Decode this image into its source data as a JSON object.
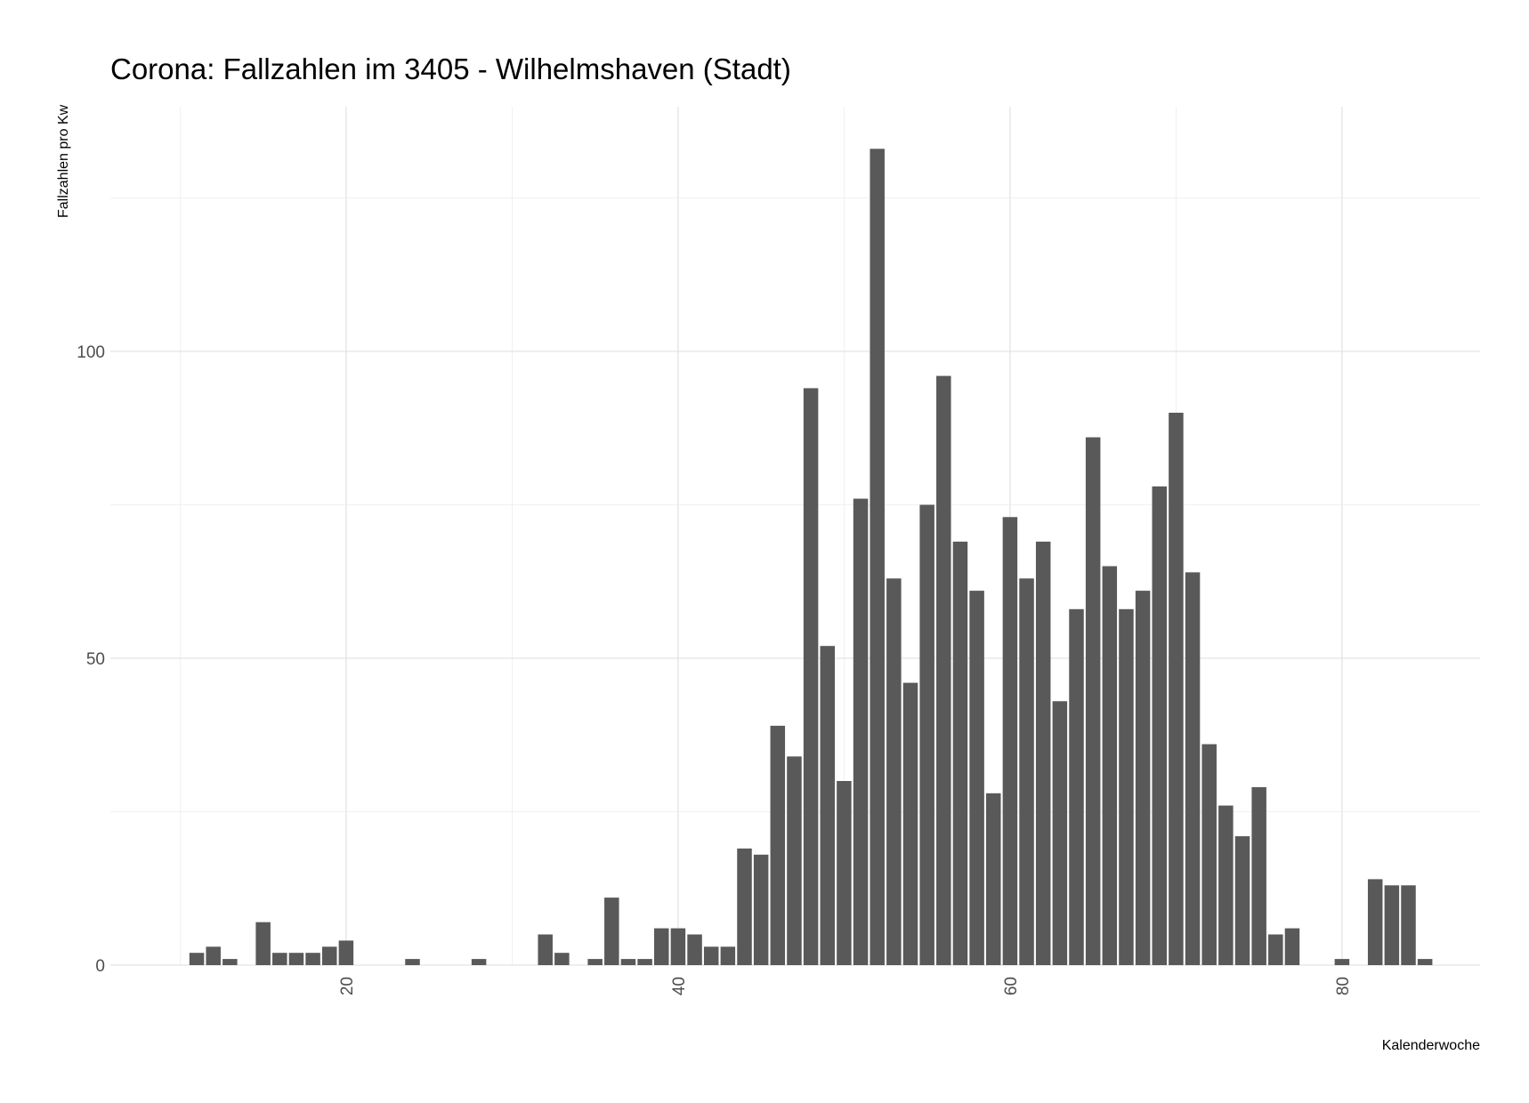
{
  "chart_data": {
    "type": "bar",
    "title": "Corona: Fallzahlen im 3405 - Wilhelmshaven (Stadt)",
    "xlabel": "Kalenderwoche",
    "ylabel": "Fallzahlen pro Kw",
    "x_ticks": [
      20,
      40,
      60,
      80
    ],
    "y_ticks": [
      0,
      50,
      100
    ],
    "xlim": [
      6,
      88
    ],
    "ylim": [
      0,
      135
    ],
    "grid": true,
    "bar_color": "#595959",
    "x": [
      11,
      12,
      13,
      15,
      16,
      17,
      18,
      19,
      20,
      24,
      28,
      32,
      33,
      35,
      36,
      37,
      38,
      39,
      40,
      41,
      42,
      43,
      44,
      45,
      46,
      47,
      48,
      49,
      50,
      51,
      52,
      53,
      54,
      55,
      56,
      57,
      58,
      59,
      60,
      61,
      62,
      63,
      64,
      65,
      66,
      67,
      68,
      69,
      70,
      71,
      72,
      73,
      74,
      75,
      76,
      77,
      80,
      82,
      83,
      84,
      85
    ],
    "values": [
      2,
      3,
      1,
      7,
      2,
      2,
      2,
      3,
      4,
      1,
      1,
      5,
      2,
      1,
      11,
      1,
      1,
      6,
      6,
      5,
      3,
      3,
      19,
      18,
      39,
      34,
      94,
      52,
      30,
      76,
      133,
      63,
      46,
      75,
      96,
      69,
      61,
      28,
      73,
      63,
      69,
      43,
      58,
      86,
      65,
      58,
      61,
      78,
      90,
      64,
      36,
      26,
      21,
      29,
      5,
      6,
      1,
      14,
      13,
      13,
      1
    ]
  }
}
